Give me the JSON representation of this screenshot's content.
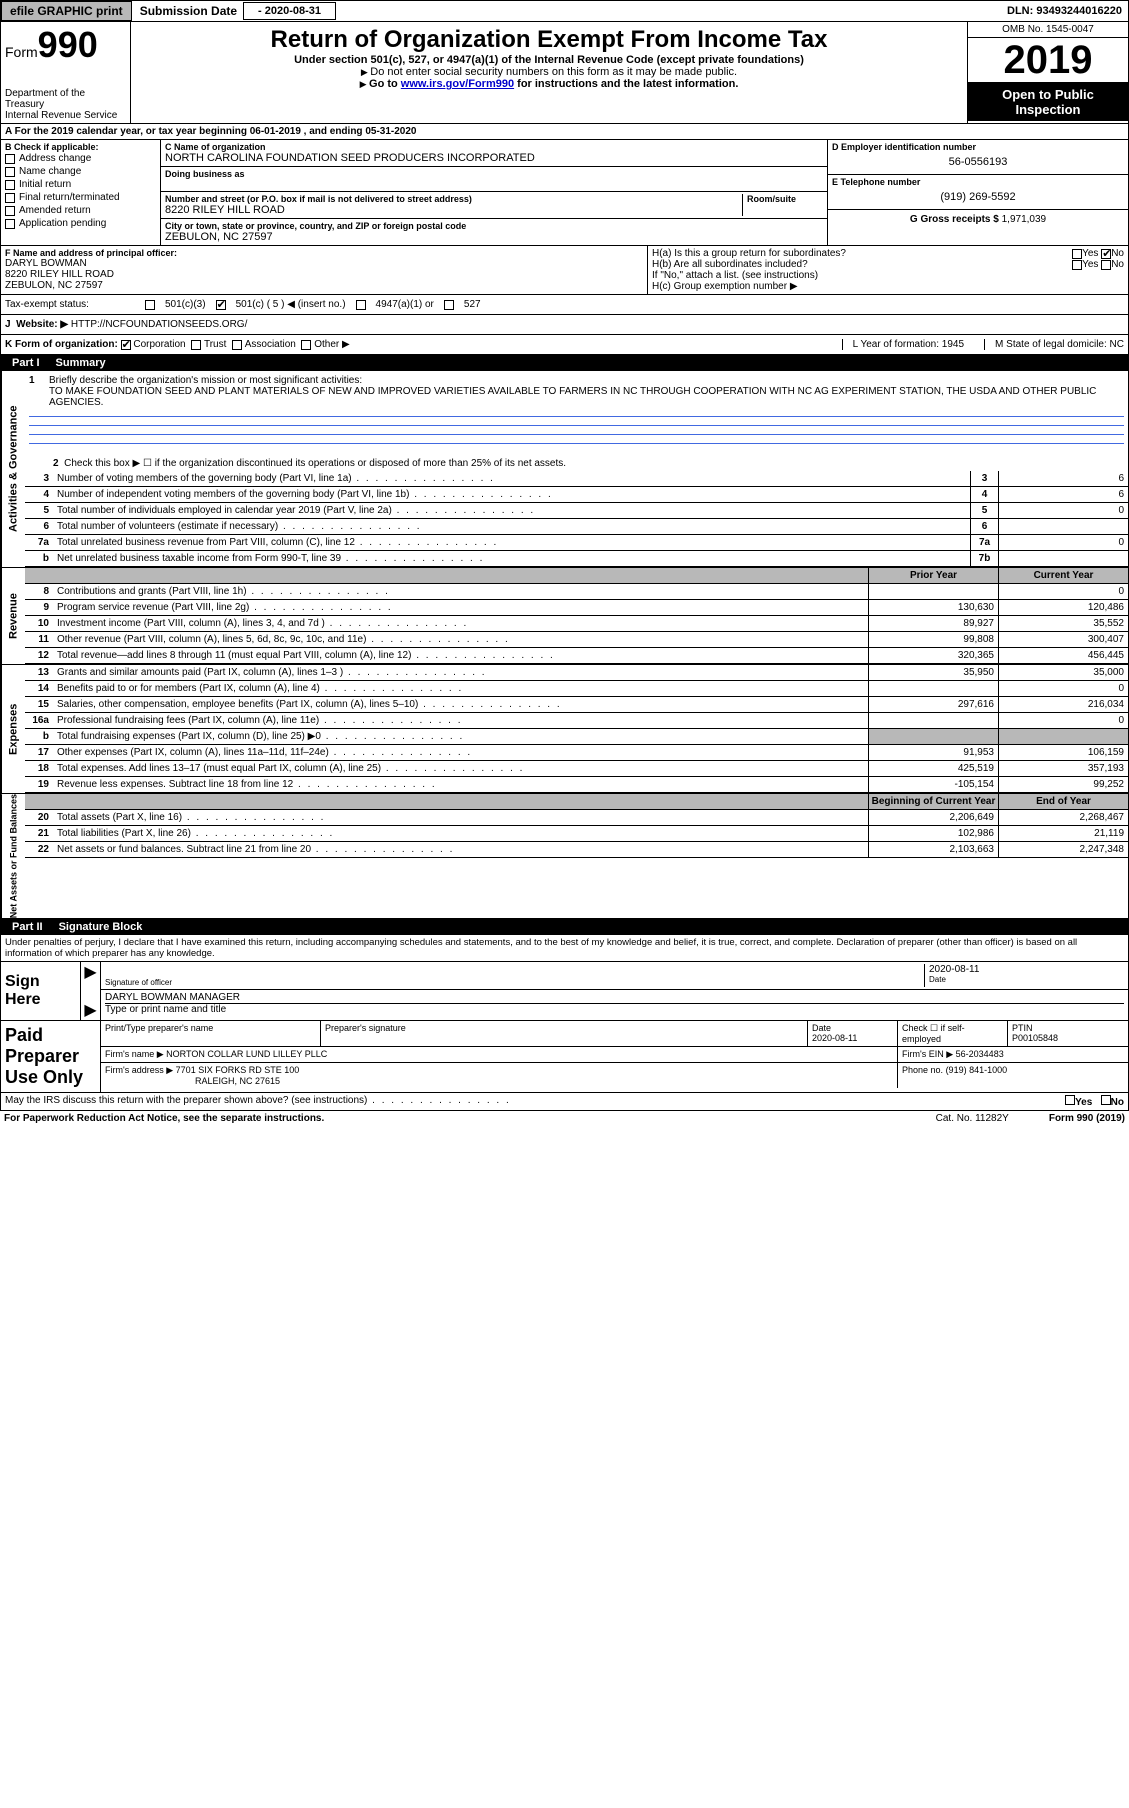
{
  "topbar": {
    "efile": "efile GRAPHIC print",
    "sub_label": "Submission Date",
    "sub_date": "- 2020-08-31",
    "dln": "DLN: 93493244016220"
  },
  "header": {
    "form_prefix": "Form",
    "form_num": "990",
    "dept": "Department of the Treasury\nInternal Revenue Service",
    "title": "Return of Organization Exempt From Income Tax",
    "sub1": "Under section 501(c), 527, or 4947(a)(1) of the Internal Revenue Code (except private foundations)",
    "sub2": "Do not enter social security numbers on this form as it may be made public.",
    "sub3_pre": "Go to ",
    "sub3_link": "www.irs.gov/Form990",
    "sub3_post": " for instructions and the latest information.",
    "omb": "OMB No. 1545-0047",
    "year": "2019",
    "open": "Open to Public Inspection"
  },
  "period": {
    "line": "A For the 2019 calendar year, or tax year beginning 06-01-2019    , and ending 05-31-2020"
  },
  "secB": {
    "label": "B Check if applicable:",
    "items": [
      "Address change",
      "Name change",
      "Initial return",
      "Final return/terminated",
      "Amended return",
      "Application pending"
    ]
  },
  "secC": {
    "name_label": "C Name of organization",
    "name": "NORTH CAROLINA FOUNDATION SEED PRODUCERS INCORPORATED",
    "dba_label": "Doing business as",
    "addr_label": "Number and street (or P.O. box if mail is not delivered to street address)",
    "room_label": "Room/suite",
    "addr": "8220 RILEY HILL ROAD",
    "city_label": "City or town, state or province, country, and ZIP or foreign postal code",
    "city": "ZEBULON, NC  27597"
  },
  "secD": {
    "label": "D Employer identification number",
    "val": "56-0556193"
  },
  "secE": {
    "label": "E Telephone number",
    "val": "(919) 269-5592"
  },
  "secG": {
    "label": "G Gross receipts $",
    "val": "1,971,039"
  },
  "secF": {
    "label": "F  Name and address of principal officer:",
    "name": "DARYL BOWMAN",
    "addr1": "8220 RILEY HILL ROAD",
    "addr2": "ZEBULON, NC  27597"
  },
  "secH": {
    "a": "H(a)  Is this a group return for subordinates?",
    "b": "H(b)  Are all subordinates included?",
    "bnote": "If \"No,\" attach a list. (see instructions)",
    "c": "H(c)  Group exemption number ▶",
    "yes": "Yes",
    "no": "No"
  },
  "secI": {
    "label": "Tax-exempt status:",
    "o1": "501(c)(3)",
    "o2": "501(c) ( 5 ) ◀ (insert no.)",
    "o3": "4947(a)(1) or",
    "o4": "527"
  },
  "secJ": {
    "label": "J",
    "text": "Website: ▶",
    "val": "HTTP://NCFOUNDATIONSEEDS.ORG/"
  },
  "secK": {
    "label": "K Form of organization:",
    "opts": [
      "Corporation",
      "Trust",
      "Association",
      "Other ▶"
    ],
    "L": "L Year of formation: 1945",
    "M": "M State of legal domicile: NC"
  },
  "part1": {
    "label": "Part I",
    "title": "Summary"
  },
  "mission": {
    "num": "1",
    "label": "Briefly describe the organization's mission or most significant activities:",
    "text": "TO MAKE FOUNDATION SEED AND PLANT MATERIALS OF NEW AND IMPROVED VARIETIES AVAILABLE TO FARMERS IN NC THROUGH COOPERATION WITH NC AG EXPERIMENT STATION, THE USDA AND OTHER PUBLIC AGENCIES."
  },
  "act": {
    "side": "Activities & Governance",
    "l2": "Check this box ▶ ☐  if the organization discontinued its operations or disposed of more than 25% of its net assets.",
    "rows": [
      {
        "n": "3",
        "d": "Number of voting members of the governing body (Part VI, line 1a)",
        "b": "3",
        "v": "6"
      },
      {
        "n": "4",
        "d": "Number of independent voting members of the governing body (Part VI, line 1b)",
        "b": "4",
        "v": "6"
      },
      {
        "n": "5",
        "d": "Total number of individuals employed in calendar year 2019 (Part V, line 2a)",
        "b": "5",
        "v": "0"
      },
      {
        "n": "6",
        "d": "Total number of volunteers (estimate if necessary)",
        "b": "6",
        "v": ""
      },
      {
        "n": "7a",
        "d": "Total unrelated business revenue from Part VIII, column (C), line 12",
        "b": "7a",
        "v": "0"
      },
      {
        "n": "b",
        "d": "Net unrelated business taxable income from Form 990-T, line 39",
        "b": "7b",
        "v": ""
      }
    ]
  },
  "rev": {
    "side": "Revenue",
    "head_prior": "Prior Year",
    "head_curr": "Current Year",
    "rows": [
      {
        "n": "8",
        "d": "Contributions and grants (Part VIII, line 1h)",
        "p": "",
        "c": "0"
      },
      {
        "n": "9",
        "d": "Program service revenue (Part VIII, line 2g)",
        "p": "130,630",
        "c": "120,486"
      },
      {
        "n": "10",
        "d": "Investment income (Part VIII, column (A), lines 3, 4, and 7d )",
        "p": "89,927",
        "c": "35,552"
      },
      {
        "n": "11",
        "d": "Other revenue (Part VIII, column (A), lines 5, 6d, 8c, 9c, 10c, and 11e)",
        "p": "99,808",
        "c": "300,407"
      },
      {
        "n": "12",
        "d": "Total revenue—add lines 8 through 11 (must equal Part VIII, column (A), line 12)",
        "p": "320,365",
        "c": "456,445"
      }
    ]
  },
  "exp": {
    "side": "Expenses",
    "rows": [
      {
        "n": "13",
        "d": "Grants and similar amounts paid (Part IX, column (A), lines 1–3 )",
        "p": "35,950",
        "c": "35,000"
      },
      {
        "n": "14",
        "d": "Benefits paid to or for members (Part IX, column (A), line 4)",
        "p": "",
        "c": "0"
      },
      {
        "n": "15",
        "d": "Salaries, other compensation, employee benefits (Part IX, column (A), lines 5–10)",
        "p": "297,616",
        "c": "216,034"
      },
      {
        "n": "16a",
        "d": "Professional fundraising fees (Part IX, column (A), line 11e)",
        "p": "",
        "c": "0"
      },
      {
        "n": "b",
        "d": "Total fundraising expenses (Part IX, column (D), line 25) ▶0",
        "p": "shade",
        "c": "shade"
      },
      {
        "n": "17",
        "d": "Other expenses (Part IX, column (A), lines 11a–11d, 11f–24e)",
        "p": "91,953",
        "c": "106,159"
      },
      {
        "n": "18",
        "d": "Total expenses. Add lines 13–17 (must equal Part IX, column (A), line 25)",
        "p": "425,519",
        "c": "357,193"
      },
      {
        "n": "19",
        "d": "Revenue less expenses. Subtract line 18 from line 12",
        "p": "-105,154",
        "c": "99,252"
      }
    ]
  },
  "net": {
    "side": "Net Assets or Fund Balances",
    "head_beg": "Beginning of Current Year",
    "head_end": "End of Year",
    "rows": [
      {
        "n": "20",
        "d": "Total assets (Part X, line 16)",
        "p": "2,206,649",
        "c": "2,268,467"
      },
      {
        "n": "21",
        "d": "Total liabilities (Part X, line 26)",
        "p": "102,986",
        "c": "21,119"
      },
      {
        "n": "22",
        "d": "Net assets or fund balances. Subtract line 21 from line 20",
        "p": "2,103,663",
        "c": "2,247,348"
      }
    ]
  },
  "part2": {
    "label": "Part II",
    "title": "Signature Block"
  },
  "sig": {
    "decl": "Under penalties of perjury, I declare that I have examined this return, including accompanying schedules and statements, and to the best of my knowledge and belief, it is true, correct, and complete. Declaration of preparer (other than officer) is based on all information of which preparer has any knowledge.",
    "sign_here": "Sign Here",
    "sig_officer": "Signature of officer",
    "date_label": "Date",
    "date": "2020-08-11",
    "name": "DARYL BOWMAN  MANAGER",
    "name_sub": "Type or print name and title"
  },
  "paid": {
    "label": "Paid Preparer Use Only",
    "h1": "Print/Type preparer's name",
    "h2": "Preparer's signature",
    "h3": "Date",
    "h3v": "2020-08-11",
    "h4": "Check ☐ if self-employed",
    "h5": "PTIN",
    "h5v": "P00105848",
    "firm_label": "Firm's name    ▶",
    "firm": "NORTON COLLAR LUND LILLEY PLLC",
    "ein_label": "Firm's EIN ▶",
    "ein": "56-2034483",
    "addr_label": "Firm's address ▶",
    "addr1": "7701 SIX FORKS RD STE 100",
    "addr2": "RALEIGH, NC  27615",
    "phone_label": "Phone no.",
    "phone": "(919) 841-1000"
  },
  "discuss": {
    "q": "May the IRS discuss this return with the preparer shown above? (see instructions)",
    "yes": "Yes",
    "no": "No"
  },
  "footer": {
    "pra": "For Paperwork Reduction Act Notice, see the separate instructions.",
    "cat": "Cat. No. 11282Y",
    "form": "Form 990 (2019)"
  }
}
